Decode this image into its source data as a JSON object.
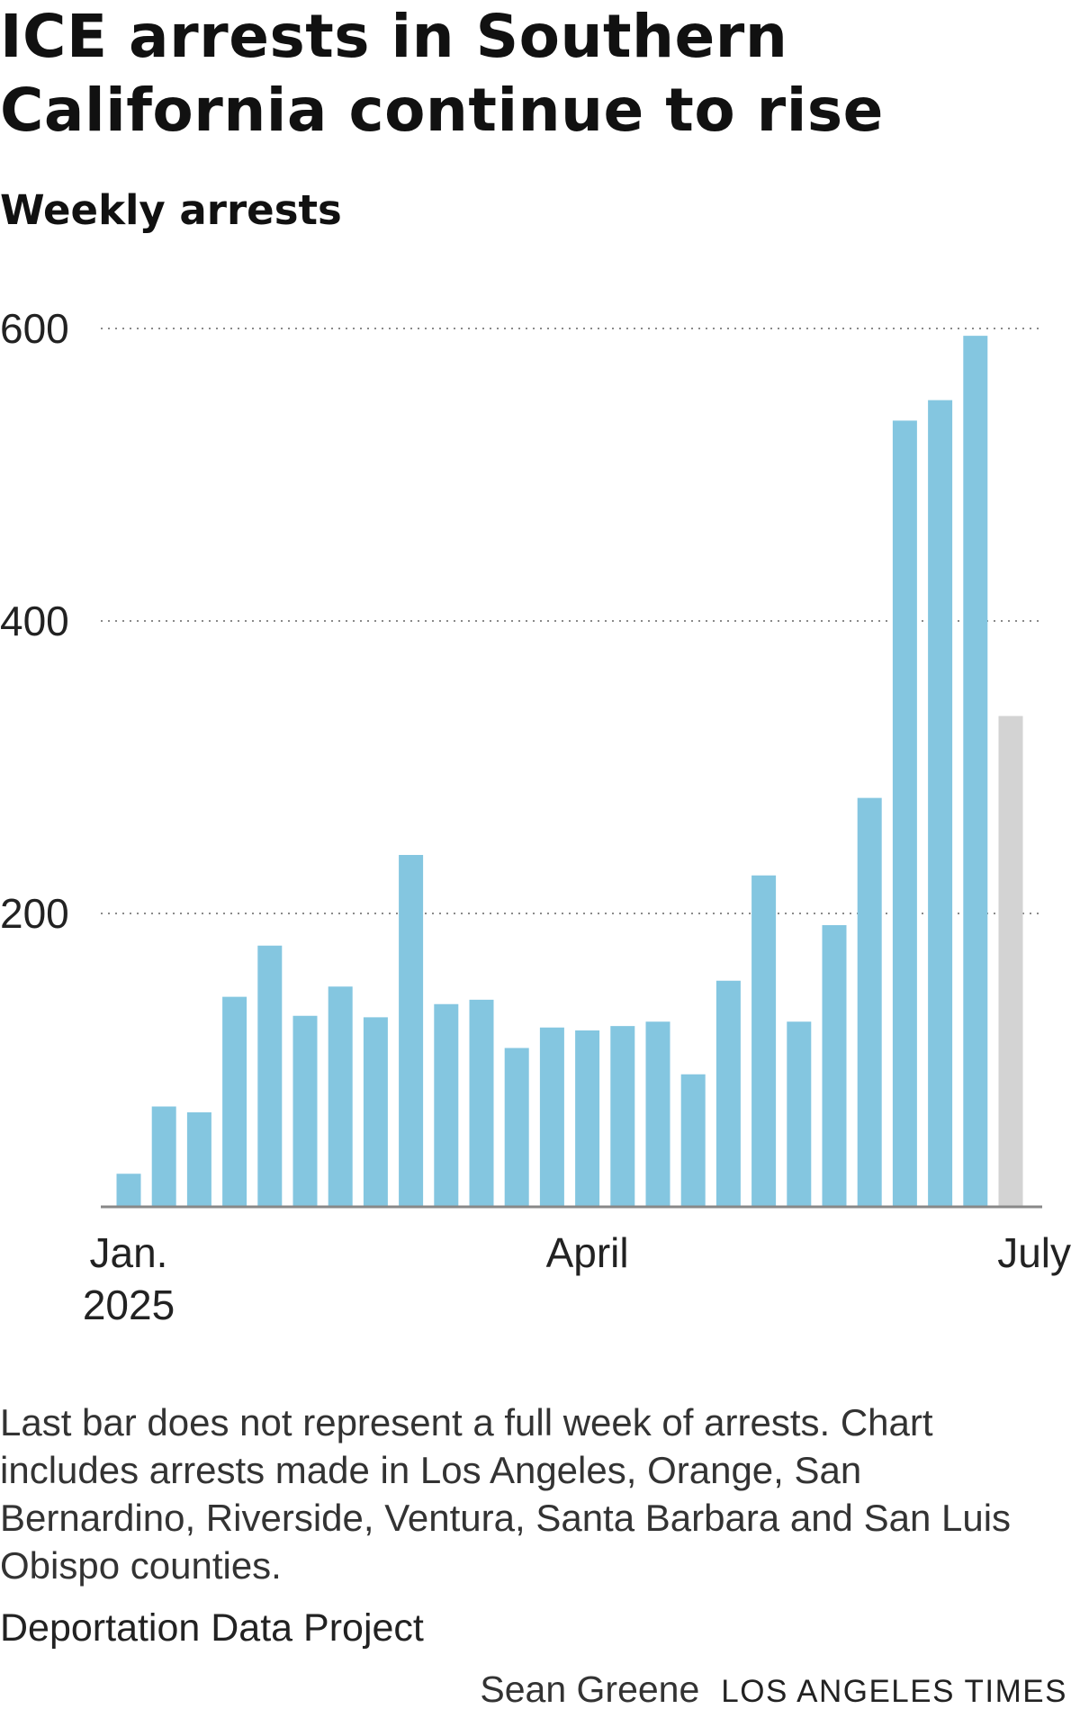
{
  "title": "ICE arrests in Southern California continue to rise",
  "subtitle": "Weekly arrests",
  "note": "Last bar does not represent a full week of arrests. Chart includes arrests made in Los Angeles, Orange, San Bernardino, Riverside, Ventura, Santa Barbara and San Luis Obispo counties.",
  "source": "Deportation Data Project",
  "credit": {
    "author": "Sean Greene",
    "publication": "LOS ANGELES TIMES"
  },
  "colors": {
    "bar": "#84c6e0",
    "partial_bar": "#d3d3d3",
    "grid": "#8a8a8a",
    "axis": "#888888"
  },
  "chart_data": {
    "type": "bar",
    "title": "ICE arrests in Southern California continue to rise",
    "subtitle": "Weekly arrests",
    "xlabel": "",
    "ylabel": "",
    "ylim": [
      0,
      600
    ],
    "yticks": [
      {
        "value": 200,
        "label": "200"
      },
      {
        "value": 400,
        "label": "400"
      },
      {
        "value": 600,
        "label": "600"
      }
    ],
    "grid": "horizontal dotted",
    "xtick_labels": [
      {
        "bar_index": 0,
        "lines": [
          "Jan.",
          "2025"
        ]
      },
      {
        "bar_index": 13,
        "lines": [
          "April"
        ]
      },
      {
        "bar_index": 25,
        "lines": [
          "July"
        ]
      }
    ],
    "values": [
      22,
      68,
      64,
      143,
      178,
      130,
      150,
      129,
      240,
      138,
      141,
      108,
      122,
      120,
      123,
      126,
      90,
      154,
      226,
      126,
      192,
      279,
      537,
      551,
      595,
      335
    ],
    "partial": [
      false,
      false,
      false,
      false,
      false,
      false,
      false,
      false,
      false,
      false,
      false,
      false,
      false,
      false,
      false,
      false,
      false,
      false,
      false,
      false,
      false,
      false,
      false,
      false,
      false,
      true
    ]
  }
}
